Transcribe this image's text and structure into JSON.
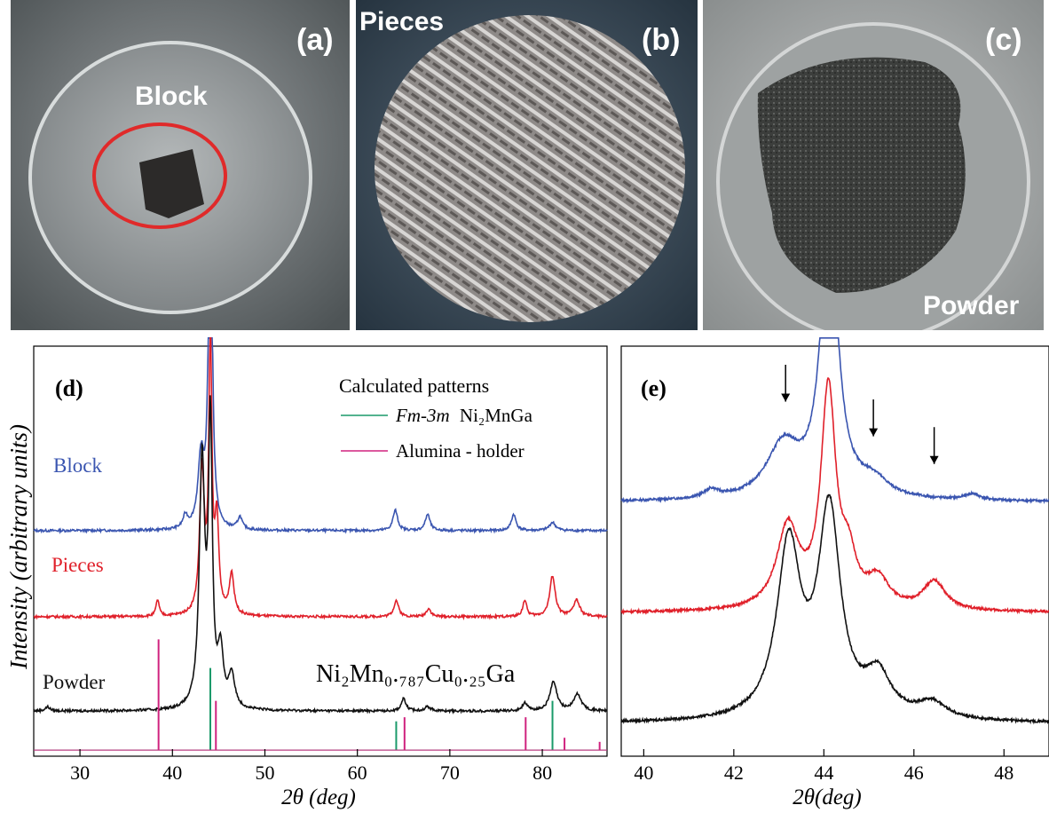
{
  "photos": {
    "a": {
      "panel": "(a)",
      "caption": "Block"
    },
    "b": {
      "panel": "(b)",
      "caption": "Pieces"
    },
    "c": {
      "panel": "(c)",
      "caption": "Powder"
    }
  },
  "colors": {
    "block": "#3a55b0",
    "pieces": "#e0202a",
    "powder": "#111111",
    "calc_fm3m": "#1a9a6a",
    "calc_alumina": "#d0227e"
  },
  "chart_data": [
    {
      "type": "line",
      "panel": "(d)",
      "xlabel": "2θ (deg)",
      "ylabel": "Intensity (arbitrary units)",
      "xlim": [
        25,
        87
      ],
      "xticks": [
        30,
        40,
        50,
        60,
        70,
        80
      ],
      "legend_title": "Calculated patterns",
      "legend_items": [
        {
          "label_italic": "Fm-3m",
          "label_rest": "Ni₂MnGa",
          "color": "#1a9a6a"
        },
        {
          "label_italic": "",
          "label_rest": "Alumina - holder",
          "color": "#d0227e"
        }
      ],
      "formula": "Ni₂Mn₀.₇₈₇Cu₀.₂₅Ga",
      "series": [
        {
          "name": "Block",
          "color": "#3a55b0",
          "baseline": 0.55,
          "peaks": [
            [
              41.4,
              0.03,
              0.3
            ],
            [
              43.1,
              0.17,
              0.4
            ],
            [
              44.1,
              0.98,
              0.22
            ],
            [
              47.3,
              0.03,
              0.3
            ],
            [
              64.1,
              0.05,
              0.3
            ],
            [
              67.6,
              0.04,
              0.3
            ],
            [
              76.9,
              0.04,
              0.3
            ],
            [
              81.1,
              0.02,
              0.4
            ]
          ]
        },
        {
          "name": "Pieces",
          "color": "#e0202a",
          "baseline": 0.34,
          "peaks": [
            [
              38.4,
              0.04,
              0.2
            ],
            [
              43.2,
              0.35,
              0.3
            ],
            [
              44.1,
              0.66,
              0.2
            ],
            [
              44.8,
              0.22,
              0.25
            ],
            [
              46.4,
              0.1,
              0.3
            ],
            [
              64.2,
              0.04,
              0.3
            ],
            [
              67.7,
              0.02,
              0.3
            ],
            [
              78.1,
              0.04,
              0.25
            ],
            [
              81.1,
              0.1,
              0.35
            ],
            [
              83.7,
              0.04,
              0.4
            ]
          ]
        },
        {
          "name": "Powder",
          "color": "#111111",
          "baseline": 0.11,
          "peaks": [
            [
              26.5,
              0.01,
              0.3
            ],
            [
              43.2,
              0.6,
              0.35
            ],
            [
              44.1,
              0.68,
              0.25
            ],
            [
              45.2,
              0.13,
              0.35
            ],
            [
              46.4,
              0.08,
              0.4
            ],
            [
              65.0,
              0.03,
              0.3
            ],
            [
              67.6,
              0.01,
              0.4
            ],
            [
              78.1,
              0.02,
              0.3
            ],
            [
              81.2,
              0.07,
              0.45
            ],
            [
              83.8,
              0.04,
              0.5
            ]
          ]
        }
      ],
      "sticks": [
        {
          "color": "#1a9a6a",
          "positions": [
            [
              44.1,
              0.2
            ],
            [
              64.2,
              0.07
            ],
            [
              81.1,
              0.12
            ]
          ]
        },
        {
          "color": "#d0227e",
          "positions": [
            [
              38.5,
              0.27
            ],
            [
              44.7,
              0.12
            ],
            [
              65.1,
              0.08
            ],
            [
              78.2,
              0.08
            ],
            [
              82.4,
              0.03
            ],
            [
              86.2,
              0.02
            ]
          ]
        }
      ]
    },
    {
      "type": "line",
      "panel": "(e)",
      "xlabel": "2θ(deg)",
      "xlim": [
        39.5,
        49
      ],
      "xticks": [
        40,
        42,
        44,
        46,
        48
      ],
      "arrows_at": [
        43.15,
        45.1,
        46.45
      ],
      "series": [
        {
          "name": "Block",
          "color": "#3a55b0",
          "baseline": 0.62,
          "peaks": [
            [
              41.5,
              0.02,
              0.2
            ],
            [
              43.1,
              0.13,
              0.45
            ],
            [
              44.12,
              0.7,
              0.22
            ],
            [
              45.1,
              0.04,
              0.4
            ],
            [
              47.3,
              0.015,
              0.2
            ]
          ]
        },
        {
          "name": "Pieces",
          "color": "#e0202a",
          "baseline": 0.35,
          "peaks": [
            [
              43.2,
              0.2,
              0.3
            ],
            [
              44.1,
              0.53,
              0.2
            ],
            [
              44.55,
              0.1,
              0.2
            ],
            [
              45.2,
              0.07,
              0.3
            ],
            [
              46.45,
              0.07,
              0.3
            ]
          ]
        },
        {
          "name": "Powder",
          "color": "#111111",
          "baseline": 0.08,
          "peaks": [
            [
              43.22,
              0.42,
              0.32
            ],
            [
              44.12,
              0.5,
              0.3
            ],
            [
              45.2,
              0.1,
              0.35
            ],
            [
              46.4,
              0.04,
              0.4
            ]
          ]
        }
      ]
    }
  ]
}
